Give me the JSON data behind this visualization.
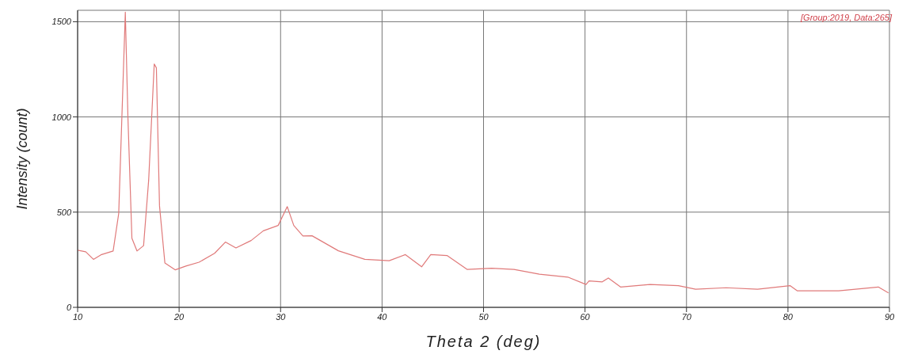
{
  "chart_data": {
    "type": "line",
    "xlabel": "Theta 2 (deg)",
    "ylabel": "Intensity (count)",
    "annotations": [
      "[Group:2019,  Data:265]"
    ],
    "xlim": [
      10,
      90
    ],
    "xticks": [
      10,
      20,
      30,
      40,
      50,
      60,
      70,
      80,
      90
    ],
    "ylim": [
      0,
      1560
    ],
    "yticks": [
      0,
      500,
      1000,
      1500
    ],
    "grid": true,
    "marker": "none",
    "line_style": "solid",
    "series": [
      {
        "color": "#e07a7a",
        "x": [
          10,
          10.8,
          11.56,
          12.3,
          13.5,
          14.05,
          14.4,
          14.7,
          14.96,
          15.35,
          15.85,
          16.5,
          17.0,
          17.55,
          17.76,
          18.07,
          18.6,
          19.63,
          20.67,
          21.97,
          23.5,
          24.56,
          25.6,
          27.1,
          28.3,
          29.76,
          30.66,
          31.3,
          32.2,
          33.1,
          35.7,
          38.3,
          40.7,
          42.3,
          43.9,
          44.8,
          46.4,
          48.4,
          50.8,
          53.0,
          55.5,
          58.3,
          60.1,
          60.4,
          61.7,
          62.3,
          63.5,
          66.4,
          69.2,
          70.9,
          73.9,
          77.0,
          80.2,
          80.9,
          85.0,
          88.9,
          89.9
        ],
        "values": [
          300,
          292,
          252,
          276,
          296,
          493,
          1061,
          1550,
          994,
          363,
          296,
          324,
          667,
          1278,
          1258,
          533,
          233,
          197,
          217,
          237,
          284,
          343,
          312,
          351,
          402,
          430,
          529,
          430,
          375,
          376,
          297,
          252,
          245,
          277,
          213,
          277,
          272,
          199,
          205,
          199,
          174,
          159,
          120,
          139,
          134,
          154,
          107,
          120,
          114,
          95,
          103,
          95,
          114,
          87,
          87,
          107,
          76
        ]
      }
    ]
  }
}
